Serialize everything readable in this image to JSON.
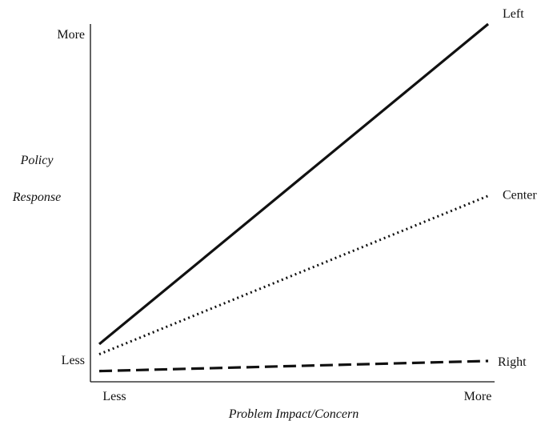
{
  "chart_data": {
    "type": "line",
    "title": "",
    "xlabel": "Problem Impact/Concern",
    "ylabel_lines": [
      "Policy",
      "Response"
    ],
    "x_tick_labels": [
      "Less",
      "More"
    ],
    "y_tick_labels": [
      "Less",
      "More"
    ],
    "x": [
      0,
      1
    ],
    "xlim": [
      0,
      1
    ],
    "ylim": [
      0,
      1
    ],
    "grid": false,
    "legend": "none (series labeled at right end of lines)",
    "series": [
      {
        "name": "Left",
        "style": "solid",
        "values": [
          0.05,
          1.0
        ]
      },
      {
        "name": "Center",
        "style": "dotted",
        "values": [
          0.02,
          0.49
        ]
      },
      {
        "name": "Right",
        "style": "dashed",
        "values": [
          -0.03,
          0.0
        ]
      }
    ]
  }
}
